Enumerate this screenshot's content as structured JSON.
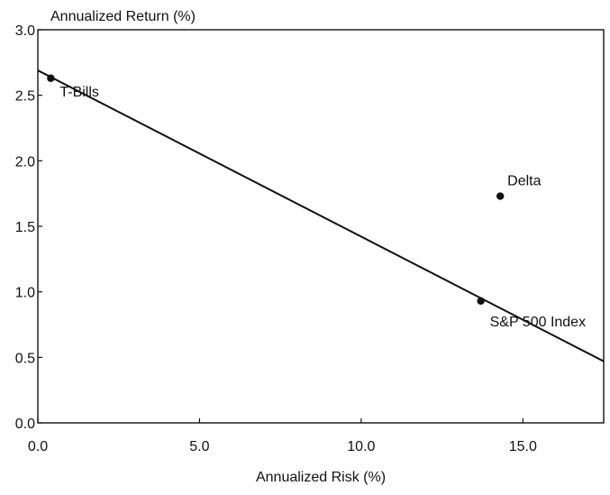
{
  "chart_data": {
    "type": "scatter",
    "title": "",
    "ylabel": "Annualized Return (%)",
    "xlabel": "Annualized Risk (%)",
    "xlim": [
      0.0,
      17.5
    ],
    "ylim": [
      0.0,
      3.0
    ],
    "x_ticks": [
      0.0,
      5.0,
      10.0,
      15.0
    ],
    "x_tick_labels": [
      "0.0",
      "5.0",
      "10.0",
      "15.0"
    ],
    "y_ticks": [
      0.0,
      0.5,
      1.0,
      1.5,
      2.0,
      2.5,
      3.0
    ],
    "y_tick_labels": [
      "0.0",
      "0.5",
      "1.0",
      "1.5",
      "2.0",
      "2.5",
      "3.0"
    ],
    "grid": false,
    "points": [
      {
        "label": "T-Bills",
        "x": 0.4,
        "y": 2.63
      },
      {
        "label": "S&P 500 Index",
        "x": 13.7,
        "y": 0.93
      },
      {
        "label": "Delta",
        "x": 14.3,
        "y": 1.73
      }
    ],
    "line": {
      "x": [
        0.0,
        17.5
      ],
      "y": [
        2.69,
        0.47
      ]
    },
    "colors": {
      "axis": "#111111",
      "marker": "#111111",
      "background": "#ffffff"
    }
  }
}
